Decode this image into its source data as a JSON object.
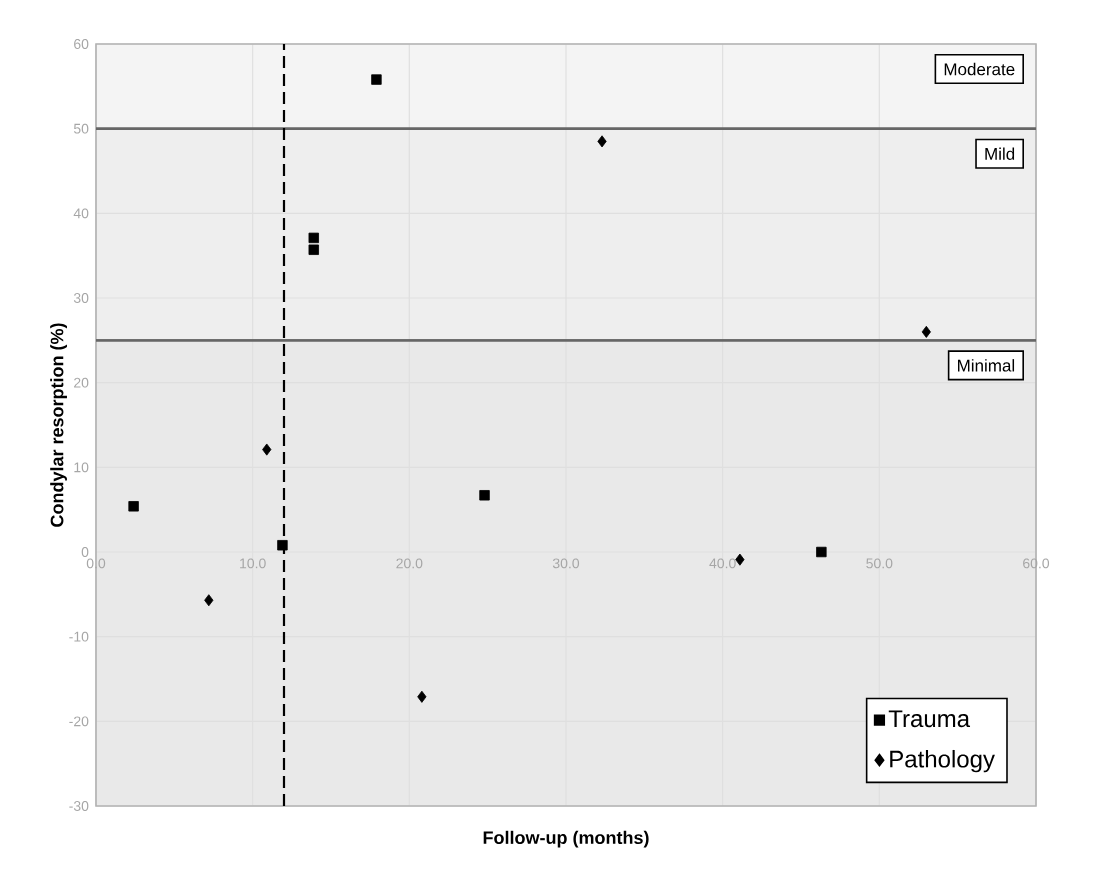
{
  "chart_data": {
    "type": "scatter",
    "xlabel": "Follow-up (months)",
    "ylabel": "Condylar resorption (%)",
    "series": [
      {
        "name": "Trauma",
        "color": "#000000",
        "marker": "square",
        "x": [
          2.4,
          11.9,
          13.9,
          13.9,
          17.9,
          24.8,
          46.3
        ],
        "values": [
          5.4,
          0.8,
          37.1,
          35.7,
          55.8,
          6.7,
          0.0
        ]
      },
      {
        "name": "Pathology",
        "color": "#000000",
        "marker": "diamond",
        "x": [
          7.2,
          10.9,
          20.8,
          32.3,
          41.1,
          53.0
        ],
        "values": [
          -5.7,
          12.1,
          -17.1,
          48.5,
          -0.9,
          26.0
        ]
      }
    ],
    "xlim": [
      0,
      60
    ],
    "ylim": [
      -30,
      60
    ],
    "xticks": [
      {
        "value": 0,
        "label": "0.0"
      },
      {
        "value": 10,
        "label": "10.0"
      },
      {
        "value": 20,
        "label": "20.0"
      },
      {
        "value": 30,
        "label": "30.0"
      },
      {
        "value": 40,
        "label": "40.0"
      },
      {
        "value": 50,
        "label": "50.0"
      },
      {
        "value": 60,
        "label": "60.0"
      }
    ],
    "yticks": [
      -30,
      -20,
      -10,
      0,
      10,
      20,
      30,
      40,
      50,
      60
    ],
    "bands": [
      {
        "axis": "y",
        "from": 50,
        "to": 60,
        "label": "Moderate",
        "color": "#f4f4f4"
      },
      {
        "axis": "y",
        "from": 25,
        "to": 50,
        "label": "Mild",
        "color": "#eeeeee"
      },
      {
        "axis": "y",
        "from": -30,
        "to": 25,
        "label": "Minimal",
        "color": "#e9e9e9"
      }
    ],
    "ref_lines": [
      {
        "axis": "x",
        "value": 12,
        "line_style": "dashed",
        "color": "#000000"
      }
    ],
    "grid": true,
    "legend": "bottom right"
  }
}
